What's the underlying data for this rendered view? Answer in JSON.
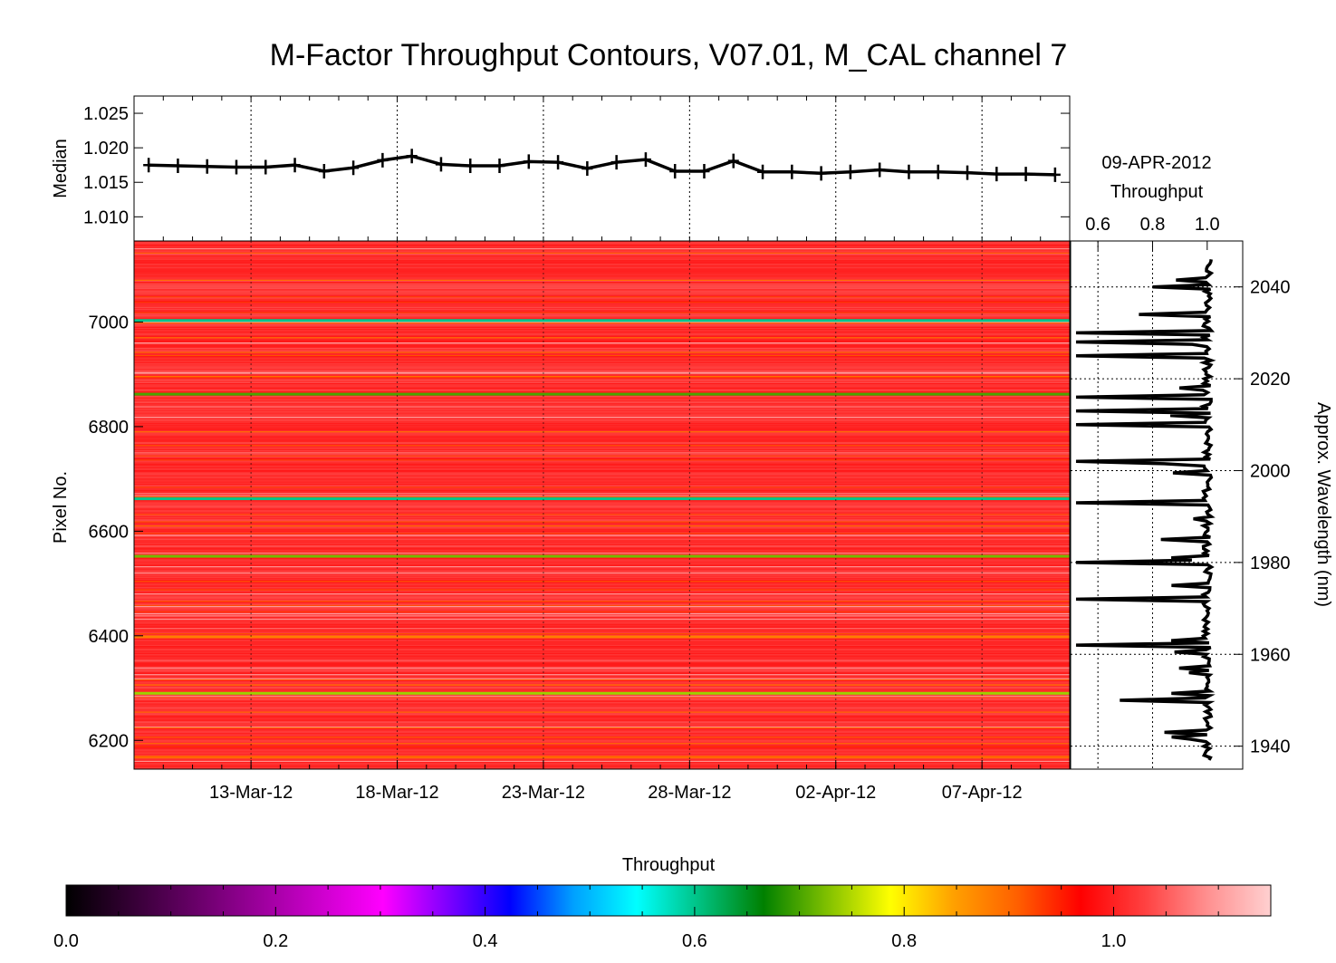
{
  "title": "M-Factor Throughput Contours, V07.01, M_CAL channel 7",
  "colors": {
    "median_line": "#000000",
    "background": "#ffffff",
    "heatmap_base": "#ff2a1e",
    "colormap": [
      "#000000",
      "#330033",
      "#660066",
      "#990099",
      "#cc00cc",
      "#ff00ff",
      "#8000ff",
      "#0000ff",
      "#00a0ff",
      "#00ffff",
      "#00c080",
      "#008000",
      "#80c000",
      "#ffff00",
      "#ffa000",
      "#ff6000",
      "#ff0000",
      "#ff4040",
      "#ff9090",
      "#ffd0d0"
    ]
  },
  "chart_data": [
    {
      "type": "line",
      "panel": "median",
      "ylabel": "Median",
      "ylim": [
        1.0065,
        1.0275
      ],
      "yticks": [
        "1.010",
        "1.015",
        "1.020",
        "1.025"
      ],
      "yticks_values": [
        1.01,
        1.015,
        1.02,
        1.025
      ],
      "x_dates": [
        "2012-03-09",
        "2012-03-10",
        "2012-03-11",
        "2012-03-12",
        "2012-03-13",
        "2012-03-14",
        "2012-03-15",
        "2012-03-16",
        "2012-03-17",
        "2012-03-18",
        "2012-03-19",
        "2012-03-20",
        "2012-03-21",
        "2012-03-22",
        "2012-03-23",
        "2012-03-24",
        "2012-03-25",
        "2012-03-26",
        "2012-03-27",
        "2012-03-28",
        "2012-03-29",
        "2012-03-30",
        "2012-03-31",
        "2012-04-01",
        "2012-04-02",
        "2012-04-03",
        "2012-04-04",
        "2012-04-05",
        "2012-04-06",
        "2012-04-07",
        "2012-04-08",
        "2012-04-09"
      ],
      "values": [
        1.0175,
        1.0174,
        1.0173,
        1.0172,
        1.0172,
        1.0175,
        1.0166,
        1.0171,
        1.0182,
        1.0188,
        1.0176,
        1.0174,
        1.0174,
        1.018,
        1.0179,
        1.017,
        1.0179,
        1.0183,
        1.0166,
        1.0166,
        1.0181,
        1.0165,
        1.0165,
        1.0163,
        1.0165,
        1.0168,
        1.0165,
        1.0165,
        1.0164,
        1.0162,
        1.0162,
        1.0161
      ],
      "grid": "vertical dotted"
    },
    {
      "type": "heatmap",
      "panel": "contours",
      "ylabel": "Pixel No.",
      "ylim": [
        6145,
        7155
      ],
      "yticks": [
        "6200",
        "6400",
        "6600",
        "6800",
        "7000"
      ],
      "yticks_values": [
        6200,
        6400,
        6600,
        6800,
        7000
      ],
      "xlim": [
        "2012-03-09",
        "2012-04-10"
      ],
      "xticks": [
        "13-Mar-12",
        "18-Mar-12",
        "23-Mar-12",
        "28-Mar-12",
        "02-Apr-12",
        "07-Apr-12"
      ],
      "xticks_dates": [
        "2012-03-13",
        "2012-03-18",
        "2012-03-23",
        "2012-03-28",
        "2012-04-02",
        "2012-04-07"
      ],
      "typical_value": 1.02,
      "notable_rows": [
        {
          "pixel": 7003,
          "value": 0.6
        },
        {
          "pixel": 6862,
          "value": 0.7
        },
        {
          "pixel": 6662,
          "value": 0.6
        },
        {
          "pixel": 6552,
          "value": 0.72
        },
        {
          "pixel": 6398,
          "value": 0.88
        },
        {
          "pixel": 6290,
          "value": 0.74
        },
        {
          "pixel": 6168,
          "value": 0.9
        }
      ]
    },
    {
      "type": "line",
      "panel": "throughput-profile",
      "date_label": "09-APR-2012",
      "xlabel": "Throughput",
      "xlim": [
        0.5,
        1.13
      ],
      "xticks": [
        "0.6",
        "0.8",
        "1.0"
      ],
      "xticks_values": [
        0.6,
        0.8,
        1.0
      ],
      "ylabel": "Approx. Wavelength (nm)",
      "ylim": [
        1935,
        2050
      ],
      "yticks": [
        "1940",
        "1960",
        "1980",
        "2000",
        "2020",
        "2040"
      ],
      "yticks_values": [
        1940,
        1960,
        1980,
        2000,
        2020,
        2040
      ],
      "typical_value": 1.0,
      "notable_dips": [
        {
          "wavelength": 2040,
          "value": 0.8
        },
        {
          "wavelength": 2034,
          "value": 0.75
        },
        {
          "wavelength": 2030,
          "value": 0.52
        },
        {
          "wavelength": 2028,
          "value": 0.52
        },
        {
          "wavelength": 2025,
          "value": 0.52
        },
        {
          "wavelength": 2016,
          "value": 0.52
        },
        {
          "wavelength": 2013,
          "value": 0.52
        },
        {
          "wavelength": 2010,
          "value": 0.52
        },
        {
          "wavelength": 2002,
          "value": 0.52
        },
        {
          "wavelength": 1993,
          "value": 0.52
        },
        {
          "wavelength": 1980,
          "value": 0.52
        },
        {
          "wavelength": 1972,
          "value": 0.52
        },
        {
          "wavelength": 1962,
          "value": 0.52
        },
        {
          "wavelength": 1950,
          "value": 0.68
        },
        {
          "wavelength": 1942,
          "value": 0.87
        }
      ]
    },
    {
      "type": "heatmap",
      "panel": "colorbar",
      "title": "Throughput",
      "range": [
        0.0,
        1.15
      ],
      "ticks": [
        "0.0",
        "0.2",
        "0.4",
        "0.6",
        "0.8",
        "1.0"
      ],
      "ticks_values": [
        0.0,
        0.2,
        0.4,
        0.6,
        0.8,
        1.0
      ]
    }
  ]
}
